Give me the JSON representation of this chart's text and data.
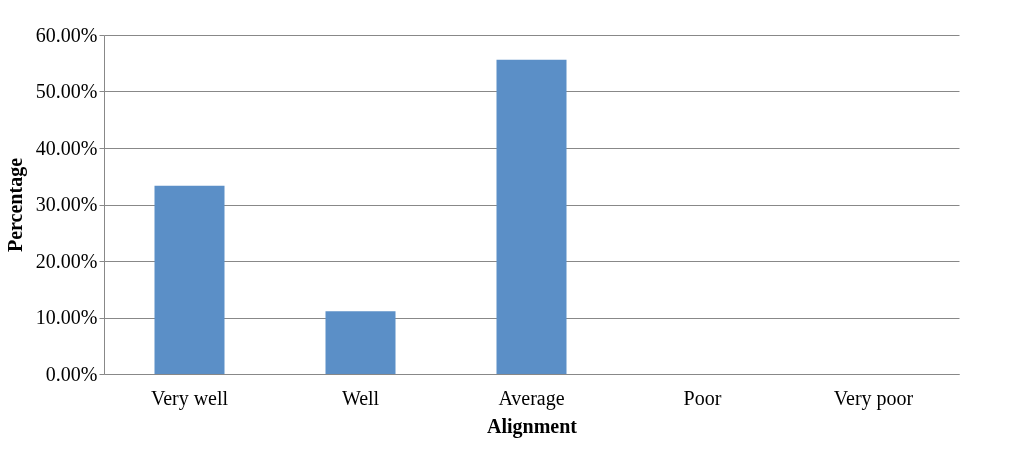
{
  "chart_data": {
    "type": "bar",
    "xlabel": "Alignment",
    "ylabel": "Percentage",
    "categories": [
      "Very well",
      "Well",
      "Average",
      "Poor",
      "Very poor"
    ],
    "series": [
      {
        "color": "#5b8fc7",
        "values": [
          33.3,
          11.1,
          55.6,
          0,
          0
        ]
      }
    ],
    "ylim": [
      0,
      60
    ],
    "yticks": [
      {
        "value": 0,
        "label": "0.00%"
      },
      {
        "value": 10,
        "label": "10.00%"
      },
      {
        "value": 20,
        "label": "20.00%"
      },
      {
        "value": 30,
        "label": "30.00%"
      },
      {
        "value": 40,
        "label": "40.00%"
      },
      {
        "value": 50,
        "label": "50.00%"
      },
      {
        "value": 60,
        "label": "60.00%"
      }
    ],
    "grid": "y",
    "legend": false
  }
}
